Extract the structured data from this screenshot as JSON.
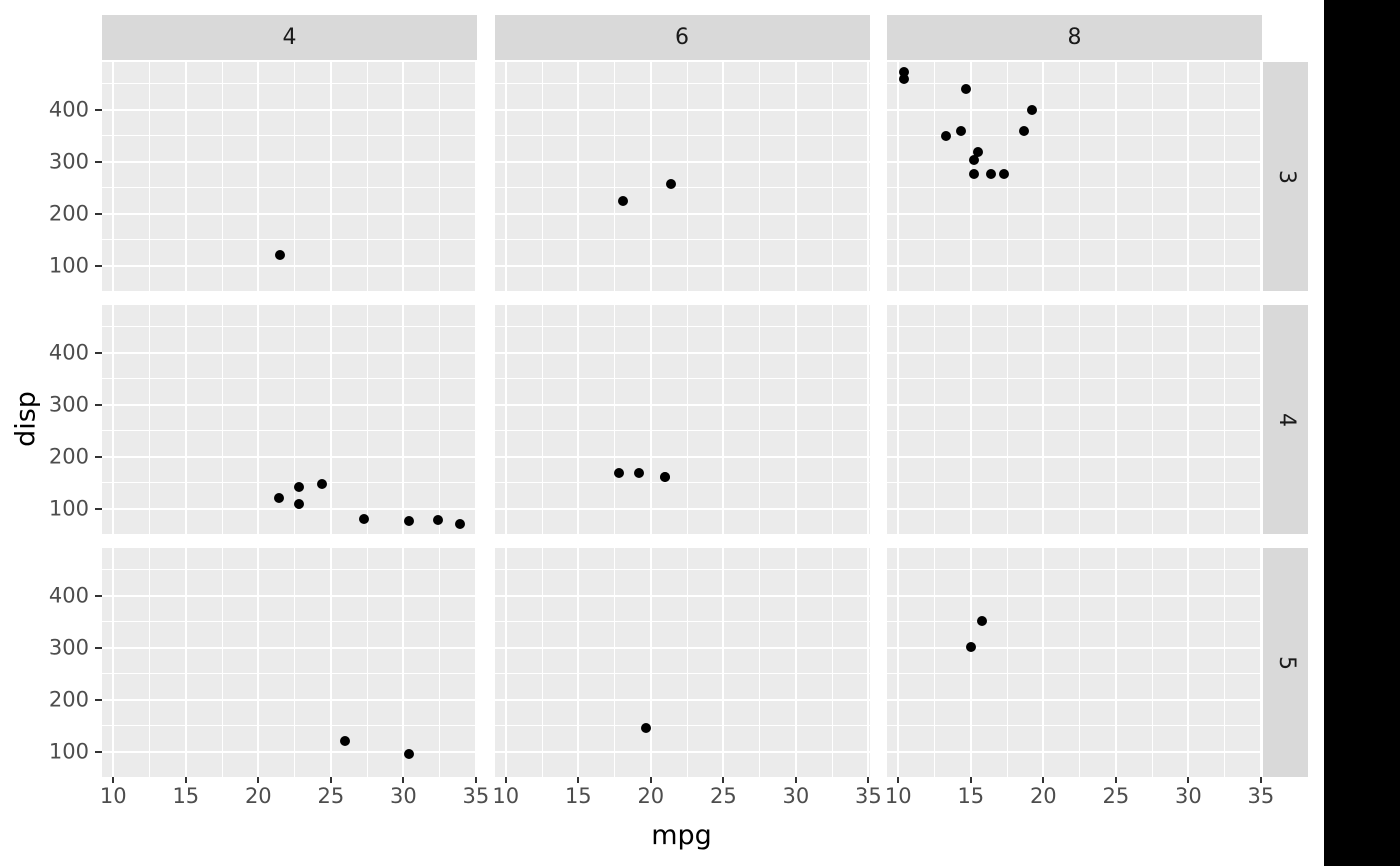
{
  "chart_data": {
    "type": "scatter",
    "title": "",
    "xlabel": "mpg",
    "ylabel": "disp",
    "legend": "none",
    "grid": "on",
    "x_range": [
      9.22,
      35.08
    ],
    "y_range": [
      51.0,
      492.1
    ],
    "x_ticks": [
      10,
      15,
      20,
      25,
      30,
      35
    ],
    "x_minor_ticks": [
      12.5,
      17.5,
      22.5,
      27.5,
      32.5
    ],
    "y_ticks": [
      100,
      200,
      300,
      400
    ],
    "y_minor_ticks": [
      50,
      150,
      250,
      350,
      450
    ],
    "facet": {
      "col_labels": [
        "4",
        "6",
        "8"
      ],
      "row_labels": [
        "3",
        "4",
        "5"
      ]
    },
    "facets": [
      {
        "row": "3",
        "col": "4",
        "points": [
          [
            21.5,
            120.1
          ]
        ]
      },
      {
        "row": "3",
        "col": "6",
        "points": [
          [
            21.4,
            258
          ],
          [
            18.1,
            225
          ]
        ]
      },
      {
        "row": "3",
        "col": "8",
        "points": [
          [
            18.7,
            360
          ],
          [
            14.3,
            360
          ],
          [
            16.4,
            275.8
          ],
          [
            17.3,
            275.8
          ],
          [
            15.2,
            275.8
          ],
          [
            10.4,
            472
          ],
          [
            10.4,
            460
          ],
          [
            14.7,
            440
          ],
          [
            15.5,
            318
          ],
          [
            15.2,
            304
          ],
          [
            13.3,
            350
          ],
          [
            19.2,
            400
          ]
        ]
      },
      {
        "row": "4",
        "col": "4",
        "points": [
          [
            22.8,
            108
          ],
          [
            24.4,
            146.7
          ],
          [
            22.8,
            140.8
          ],
          [
            32.4,
            78.7
          ],
          [
            30.4,
            75.7
          ],
          [
            33.9,
            71.1
          ],
          [
            27.3,
            79
          ],
          [
            21.4,
            121.1
          ]
        ]
      },
      {
        "row": "4",
        "col": "6",
        "points": [
          [
            21,
            160
          ],
          [
            21,
            160
          ],
          [
            19.2,
            167.6
          ],
          [
            17.8,
            167.6
          ]
        ]
      },
      {
        "row": "4",
        "col": "8",
        "points": []
      },
      {
        "row": "5",
        "col": "4",
        "points": [
          [
            26,
            120.3
          ],
          [
            30.4,
            95.1
          ]
        ]
      },
      {
        "row": "5",
        "col": "6",
        "points": [
          [
            19.7,
            145
          ]
        ]
      },
      {
        "row": "5",
        "col": "8",
        "points": [
          [
            15.8,
            351
          ],
          [
            15,
            301
          ]
        ]
      }
    ],
    "colors": {
      "backdrop": "#000000",
      "canvas": "#ffffff",
      "panel_bg": "#ebebeb",
      "strip_bg": "#d9d9d9",
      "gridline": "#ffffff",
      "point": "#000000",
      "tick_mark": "#333333",
      "tick_label": "#4d4d4d",
      "strip_label": "#1a1a1a",
      "axis_title": "#000000"
    }
  }
}
